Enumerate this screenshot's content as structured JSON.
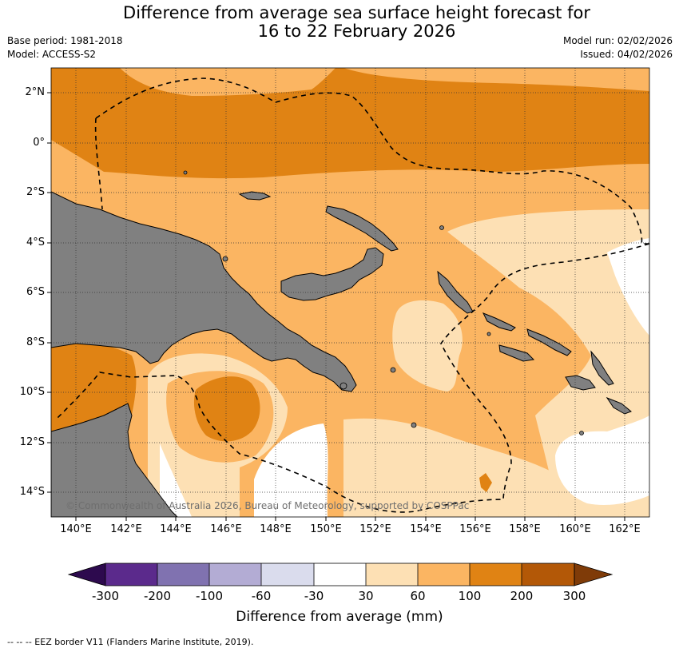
{
  "header": {
    "title_line1": "Difference from average sea surface height forecast for",
    "title_line2": "16 to 22 February 2026",
    "base_period": "Base period: 1981-2018",
    "model": "Model: ACCESS-S2",
    "model_run": "Model run: 02/02/2026",
    "issued": "Issued: 04/02/2026"
  },
  "map": {
    "lat_labels": [
      "2°N",
      "0°",
      "2°S",
      "4°S",
      "6°S",
      "8°S",
      "10°S",
      "12°S",
      "14°S"
    ],
    "lon_labels": [
      "140°E",
      "142°E",
      "144°E",
      "146°E",
      "148°E",
      "150°E",
      "152°E",
      "154°E",
      "156°E",
      "158°E",
      "160°E",
      "162°E"
    ],
    "copyright": "© Commonwealth of Australia 2026, Bureau of Meteorology, supported by COSPPac",
    "land_color": "#808080"
  },
  "colorbar": {
    "ticks": [
      "-300",
      "-200",
      "-100",
      "-60",
      "-30",
      "30",
      "60",
      "100",
      "200",
      "300"
    ],
    "colors": [
      "#2d0a4e",
      "#5b2a8c",
      "#8072b0",
      "#b3acd4",
      "#dadced",
      "#ffffff",
      "#fde0b4",
      "#fbb562",
      "#e08314",
      "#b35807",
      "#7f3b08"
    ],
    "title": "Difference from average (mm)"
  },
  "footer": {
    "legend": "--  --  -- EEZ border V11 (Flanders Marine Institute, 2019)."
  }
}
